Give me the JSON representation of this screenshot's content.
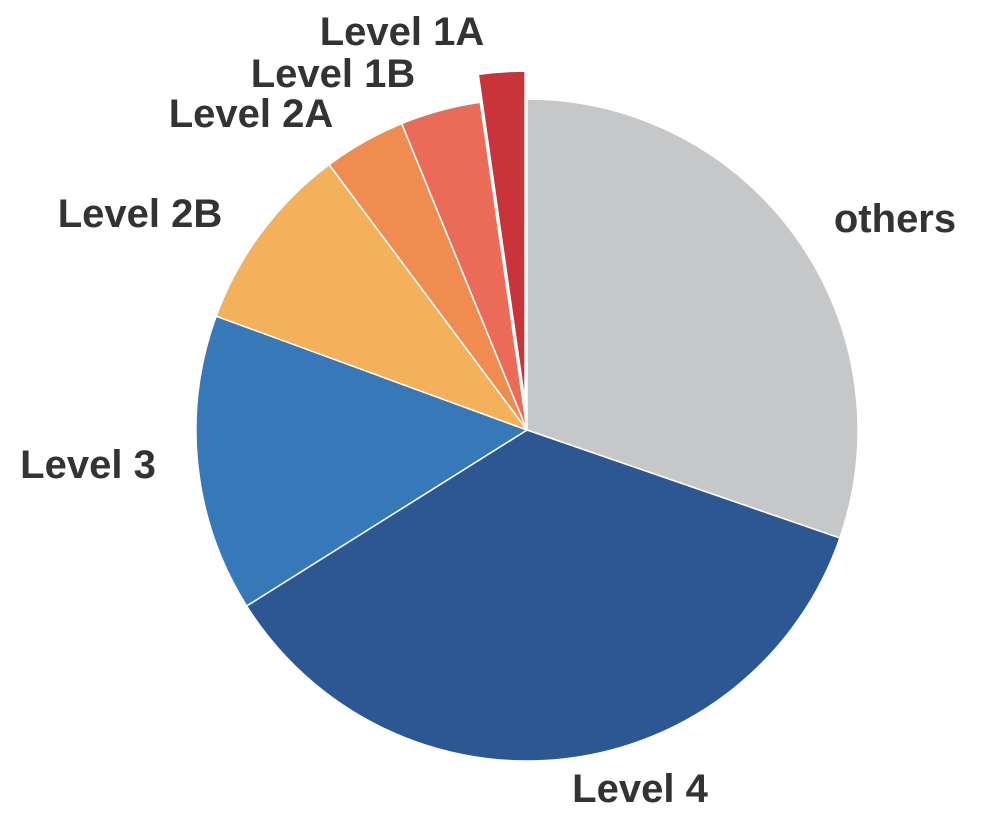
{
  "chart_data": {
    "type": "pie",
    "start_angle_deg": 0,
    "direction": "clockwise",
    "slices": [
      {
        "label": "others",
        "value": 30.9,
        "color": "#c6c7c9",
        "exploded": false
      },
      {
        "label": "Level 4",
        "value": 36.5,
        "color": "#2d5793",
        "exploded": false
      },
      {
        "label": "Level 3",
        "value": 14.8,
        "color": "#3779b8",
        "exploded": false
      },
      {
        "label": "Level 2B",
        "value": 9.4,
        "color": "#f5b05b",
        "exploded": false
      },
      {
        "label": "Level 2A",
        "value": 4.1,
        "color": "#f08c4f",
        "exploded": false
      },
      {
        "label": "Level 1B",
        "value": 4.0,
        "color": "#ea6c58",
        "exploded": false
      },
      {
        "label": "Level 1A",
        "value": 2.3,
        "color": "#c9343b",
        "exploded": true
      }
    ]
  }
}
